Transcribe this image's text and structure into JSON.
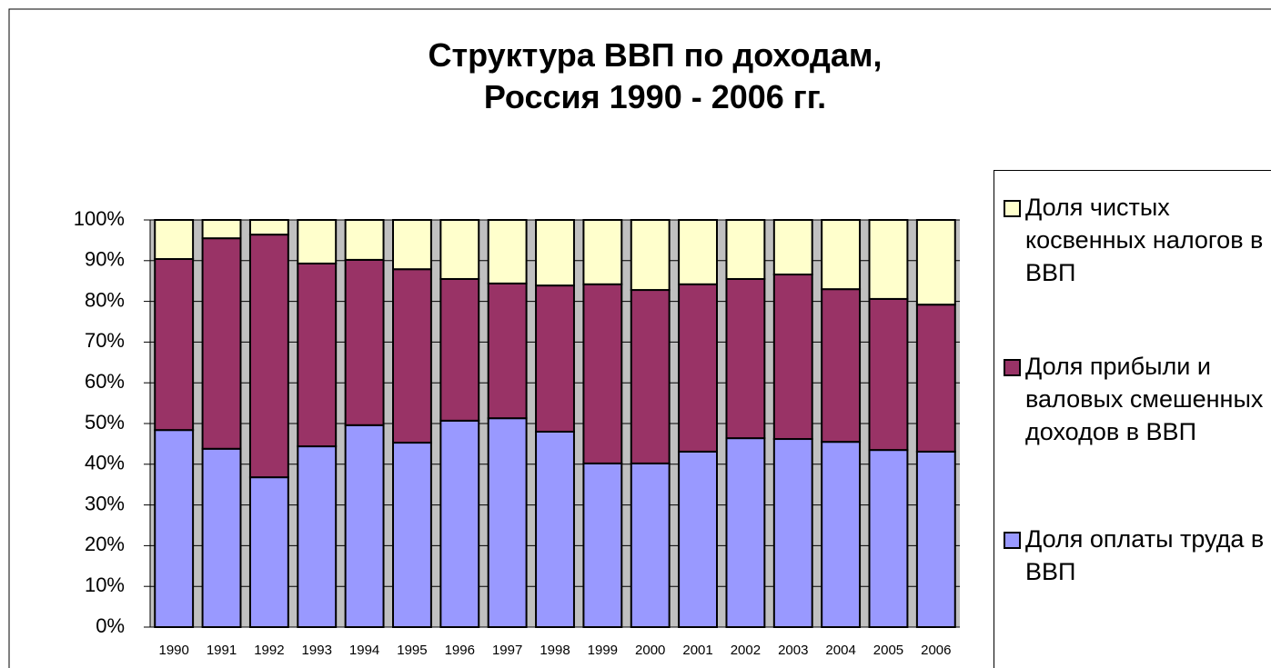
{
  "chart_data": {
    "type": "stacked_bar",
    "title": "Структура ВВП по доходам,\nРоссия 1990 - 2006 гг.",
    "categories": [
      "1990",
      "1991",
      "1992",
      "1993",
      "1994",
      "1995",
      "1996",
      "1997",
      "1998",
      "1999",
      "2000",
      "2001",
      "2002",
      "2003",
      "2004",
      "2005",
      "2006"
    ],
    "series": [
      {
        "name": "Доля оплаты труда в ВВП",
        "color": "#9999ff",
        "values": [
          48.4,
          43.8,
          36.8,
          44.4,
          49.6,
          45.3,
          50.7,
          51.3,
          48.0,
          40.2,
          40.2,
          43.1,
          46.4,
          46.2,
          45.5,
          43.5,
          43.1
        ]
      },
      {
        "name": "Доля прибыли и валовых смешенных доходов в ВВП",
        "color": "#993366",
        "values": [
          42.0,
          51.7,
          59.6,
          44.9,
          40.6,
          42.6,
          34.8,
          33.1,
          35.9,
          44.0,
          42.6,
          41.1,
          39.1,
          40.4,
          37.5,
          37.1,
          36.1
        ]
      },
      {
        "name": "Доля чистых косвенных налогов в ВВП",
        "color": "#ffffcc",
        "values": [
          9.6,
          4.5,
          3.6,
          10.7,
          9.8,
          12.1,
          14.5,
          15.6,
          16.1,
          15.8,
          17.2,
          15.8,
          14.5,
          13.4,
          17.0,
          19.4,
          20.8
        ]
      }
    ],
    "ylim": [
      0,
      100
    ],
    "yticks": [
      {
        "value": 0,
        "label": "0%"
      },
      {
        "value": 10,
        "label": "10%"
      },
      {
        "value": 20,
        "label": "20%"
      },
      {
        "value": 30,
        "label": "30%"
      },
      {
        "value": 40,
        "label": "40%"
      },
      {
        "value": 50,
        "label": "50%"
      },
      {
        "value": 60,
        "label": "60%"
      },
      {
        "value": 70,
        "label": "70%"
      },
      {
        "value": 80,
        "label": "80%"
      },
      {
        "value": 90,
        "label": "90%"
      },
      {
        "value": 100,
        "label": "100%"
      }
    ],
    "grid": true,
    "legend": "right"
  }
}
